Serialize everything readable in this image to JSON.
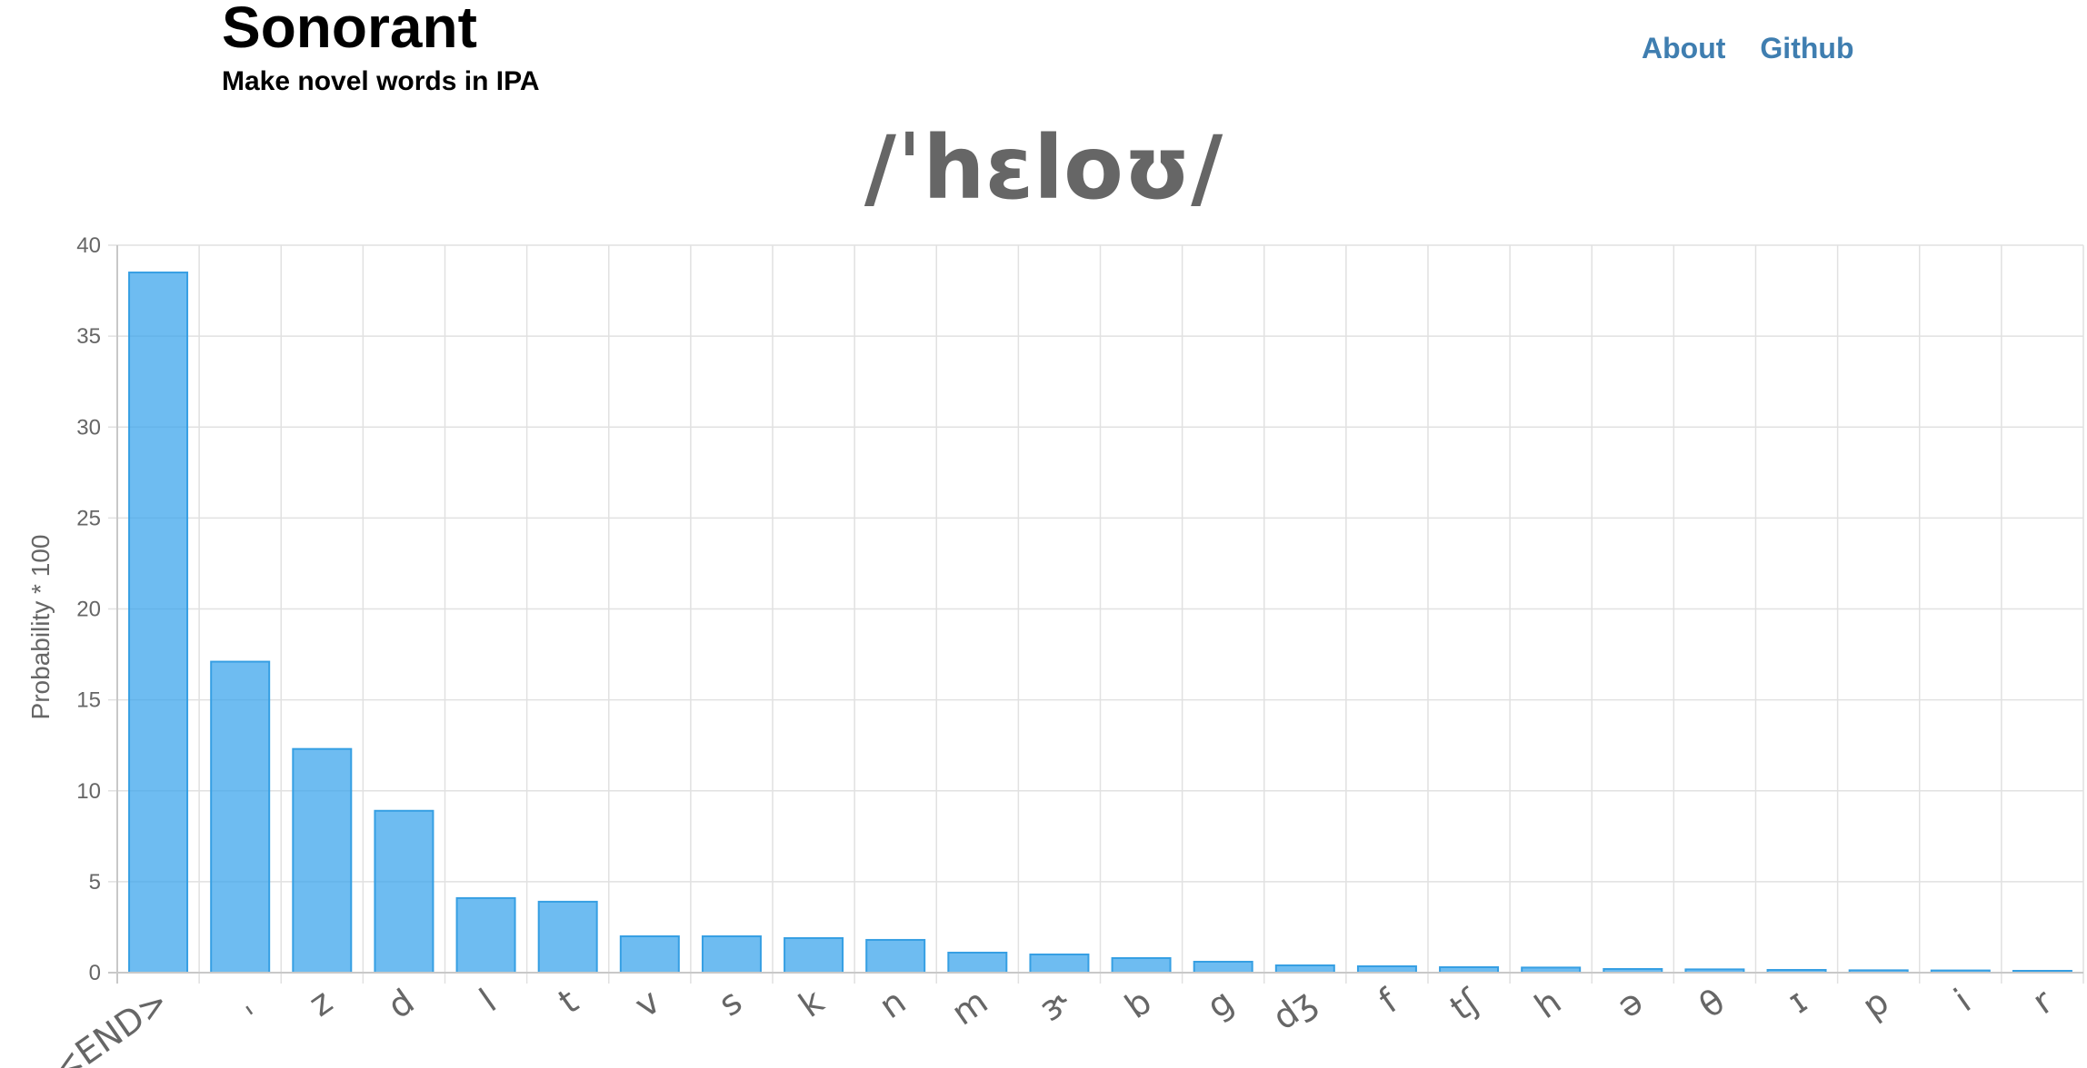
{
  "header": {
    "title": "Sonorant",
    "subtitle": "Make novel words in IPA"
  },
  "nav": {
    "about_label": "About",
    "github_label": "Github",
    "link_color": "#3f7eb0"
  },
  "word": {
    "ipa": "/ˈhɛloʊ/"
  },
  "colors": {
    "bar_fill": "rgba(54, 162, 235, 0.72)",
    "bar_stroke": "#369fe3"
  },
  "chart_data": {
    "type": "bar",
    "categories": [
      "<END>",
      "ˌ",
      "z",
      "d",
      "l",
      "t",
      "v",
      "s",
      "k",
      "n",
      "m",
      "ɝ",
      "b",
      "g",
      "dʒ",
      "f",
      "tʃ",
      "h",
      "ə",
      "θ",
      "ɪ",
      "p",
      "i",
      "r"
    ],
    "values": [
      38.5,
      17.1,
      12.3,
      8.9,
      4.1,
      3.9,
      2.0,
      2.0,
      1.9,
      1.8,
      1.1,
      1.0,
      0.8,
      0.6,
      0.4,
      0.35,
      0.3,
      0.28,
      0.2,
      0.18,
      0.15,
      0.13,
      0.12,
      0.1
    ],
    "title": "",
    "xlabel": "",
    "ylabel": "Probability * 100",
    "ylim": [
      0,
      40
    ],
    "yticks": [
      0,
      5,
      10,
      15,
      20,
      25,
      30,
      35,
      40
    ],
    "grid": true,
    "legend": "none"
  }
}
